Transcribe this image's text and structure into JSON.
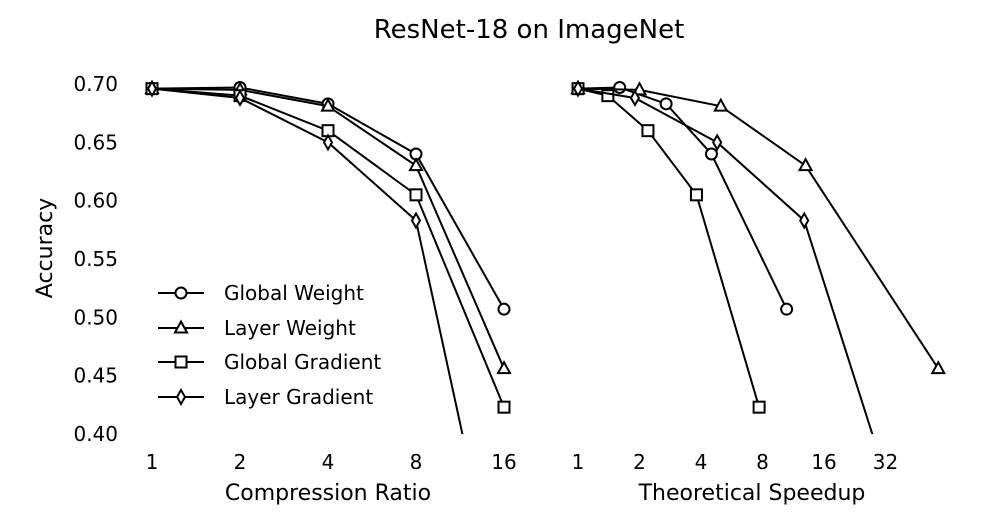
{
  "chart_data": [
    {
      "type": "line",
      "title": "ResNet-18 on ImageNet",
      "xlabel": "Compression Ratio",
      "ylabel": "Accuracy",
      "xscale": "log2",
      "x_ticks": [
        1,
        2,
        4,
        8,
        16
      ],
      "x_tick_labels": [
        "1",
        "2",
        "4",
        "8",
        "16"
      ],
      "y_ticks": [
        0.4,
        0.45,
        0.5,
        0.55,
        0.6,
        0.65,
        0.7
      ],
      "y_tick_labels": [
        "0.40",
        "0.45",
        "0.50",
        "0.55",
        "0.60",
        "0.65",
        "0.70"
      ],
      "xlim": [
        1,
        16
      ],
      "ylim": [
        0.4,
        0.7
      ],
      "grid": false,
      "legend_position": "lower-left",
      "series": [
        {
          "name": "Global Weight",
          "marker": "circle",
          "x": [
            1,
            2,
            4,
            8,
            16
          ],
          "y": [
            0.696,
            0.697,
            0.683,
            0.64,
            0.507
          ]
        },
        {
          "name": "Layer Weight",
          "marker": "triangle",
          "x": [
            1,
            2,
            4,
            8,
            16
          ],
          "y": [
            0.696,
            0.695,
            0.681,
            0.63,
            0.456
          ]
        },
        {
          "name": "Global Gradient",
          "marker": "square",
          "x": [
            1,
            2,
            4,
            8,
            16
          ],
          "y": [
            0.696,
            0.69,
            0.66,
            0.605,
            0.423
          ]
        },
        {
          "name": "Layer Gradient",
          "marker": "diamond",
          "x": [
            1,
            2,
            4,
            8,
            12
          ],
          "y": [
            0.696,
            0.688,
            0.65,
            0.583,
            0.38
          ]
        }
      ]
    },
    {
      "type": "line",
      "xlabel": "Theoretical Speedup",
      "xscale": "log2",
      "x_ticks": [
        1,
        2,
        4,
        8,
        16,
        32
      ],
      "x_tick_labels": [
        "1",
        "2",
        "4",
        "8",
        "16",
        "32"
      ],
      "xlim": [
        1,
        64
      ],
      "ylim": [
        0.4,
        0.7
      ],
      "grid": false,
      "series": [
        {
          "name": "Global Weight",
          "marker": "circle",
          "x": [
            1,
            1.6,
            2.7,
            4.5,
            10.5
          ],
          "y": [
            0.696,
            0.697,
            0.683,
            0.64,
            0.507
          ]
        },
        {
          "name": "Layer Weight",
          "marker": "triangle",
          "x": [
            1,
            2,
            5,
            13,
            58
          ],
          "y": [
            0.696,
            0.695,
            0.681,
            0.63,
            0.456
          ]
        },
        {
          "name": "Global Gradient",
          "marker": "square",
          "x": [
            1,
            1.4,
            2.2,
            3.8,
            7.7
          ],
          "y": [
            0.696,
            0.69,
            0.66,
            0.605,
            0.423
          ]
        },
        {
          "name": "Layer Gradient",
          "marker": "diamond",
          "x": [
            1,
            1.9,
            4.8,
            12.8,
            30
          ],
          "y": [
            0.696,
            0.688,
            0.65,
            0.583,
            0.38
          ]
        }
      ]
    }
  ]
}
